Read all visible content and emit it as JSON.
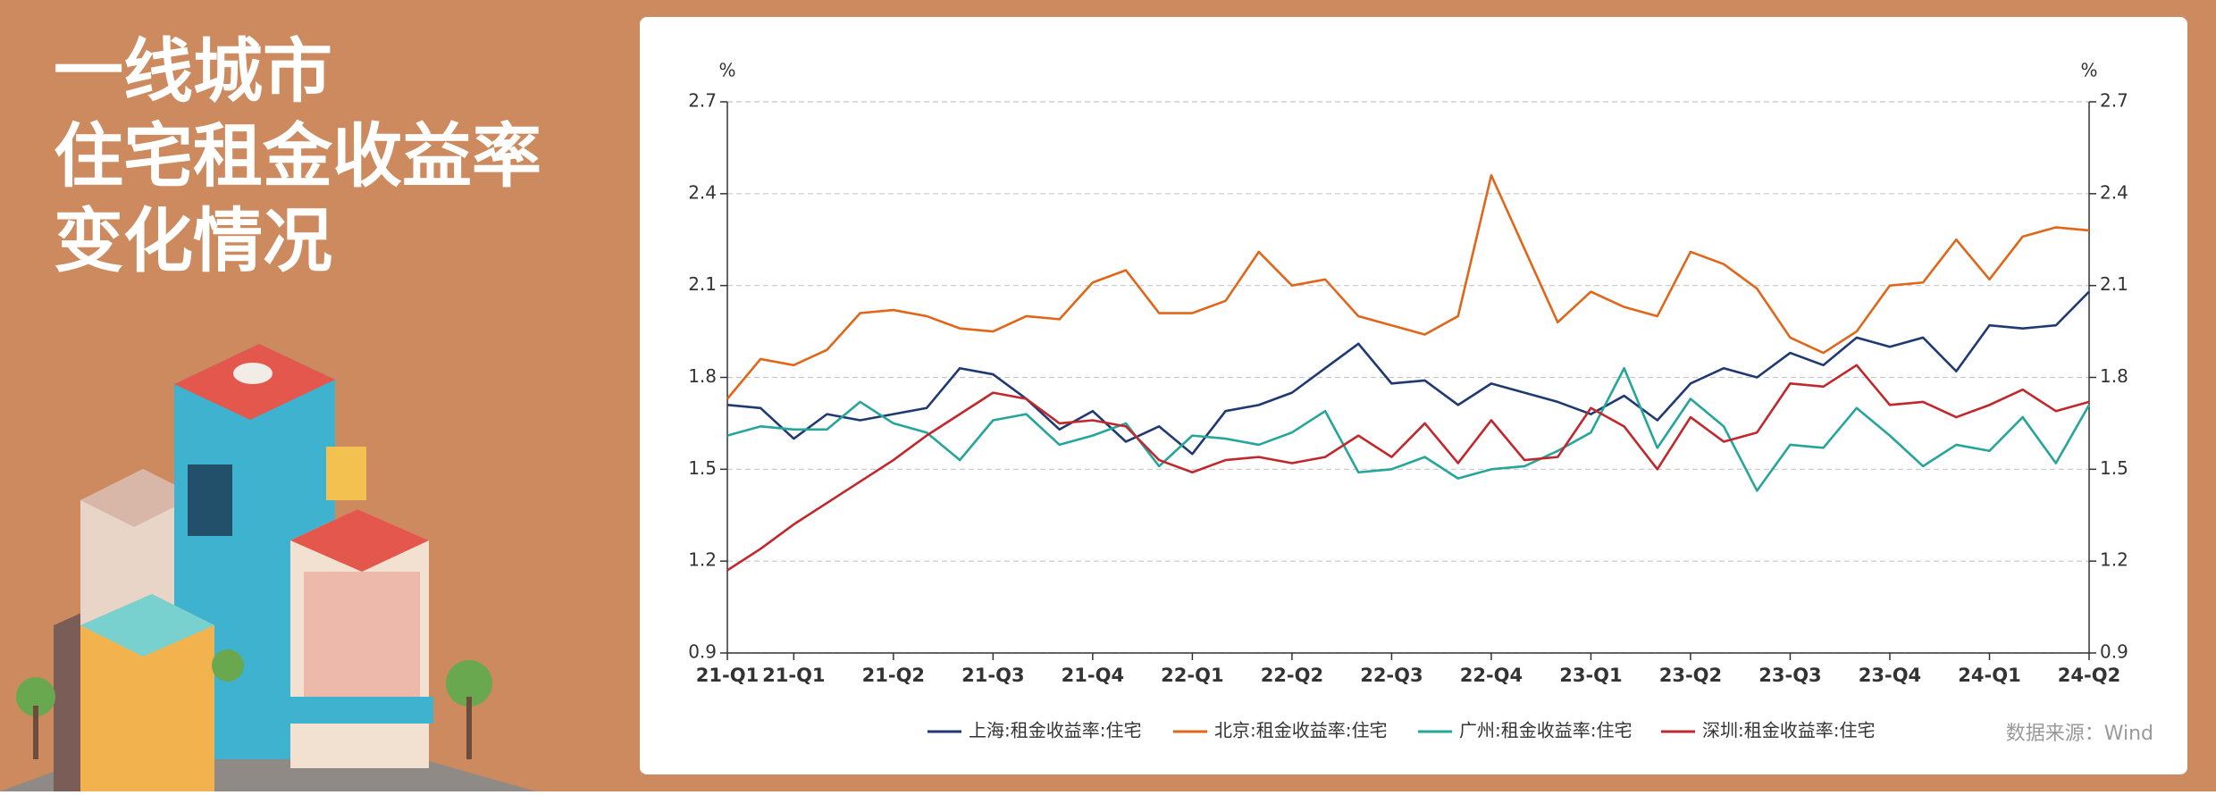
{
  "chart_data": {
    "type": "line",
    "title_lines": [
      "一线城市",
      "住宅租金收益率",
      "变化情况"
    ],
    "y_unit": "%",
    "y2_unit": "%",
    "source": "数据来源：Wind",
    "categories": [
      "21-Q1",
      null,
      "21-Q1",
      null,
      null,
      "21-Q2",
      null,
      null,
      "21-Q3",
      null,
      null,
      "21-Q4",
      null,
      null,
      "22-Q1",
      null,
      null,
      "22-Q2",
      null,
      null,
      "22-Q3",
      null,
      null,
      "22-Q4",
      null,
      null,
      "23-Q1",
      null,
      null,
      "23-Q2",
      null,
      null,
      "23-Q3",
      null,
      null,
      "23-Q4",
      null,
      null,
      "24-Q1",
      null,
      null,
      "24-Q2"
    ],
    "series": [
      {
        "name": "上海:租金收益率:住宅",
        "color": "#1f3a73",
        "values": [
          1.71,
          1.7,
          1.6,
          1.68,
          1.66,
          1.68,
          1.7,
          1.83,
          1.81,
          1.73,
          1.63,
          1.69,
          1.59,
          1.64,
          1.55,
          1.69,
          1.71,
          1.75,
          1.83,
          1.91,
          1.78,
          1.79,
          1.71,
          1.78,
          1.75,
          1.72,
          1.68,
          1.74,
          1.66,
          1.78,
          1.83,
          1.8,
          1.88,
          1.84,
          1.93,
          1.9,
          1.93,
          1.82,
          1.97,
          1.96,
          1.97,
          2.08
        ]
      },
      {
        "name": "北京:租金收益率:住宅",
        "color": "#e0671a",
        "values": [
          1.73,
          1.86,
          1.84,
          1.89,
          2.01,
          2.02,
          2.0,
          1.96,
          1.95,
          2.0,
          1.99,
          2.11,
          2.15,
          2.01,
          2.01,
          2.05,
          2.21,
          2.1,
          2.12,
          2.0,
          1.97,
          1.94,
          2.0,
          2.46,
          2.22,
          1.98,
          2.08,
          2.03,
          2.0,
          2.21,
          2.17,
          2.09,
          1.93,
          1.88,
          1.95,
          2.1,
          2.11,
          2.25,
          2.12,
          2.26,
          2.29,
          2.28
        ]
      },
      {
        "name": "广州:租金收益率:住宅",
        "color": "#26a59a",
        "values": [
          1.61,
          1.64,
          1.63,
          1.63,
          1.72,
          1.65,
          1.62,
          1.53,
          1.66,
          1.68,
          1.58,
          1.61,
          1.65,
          1.51,
          1.61,
          1.6,
          1.58,
          1.62,
          1.69,
          1.49,
          1.5,
          1.54,
          1.47,
          1.5,
          1.51,
          1.56,
          1.62,
          1.83,
          1.57,
          1.73,
          1.64,
          1.43,
          1.58,
          1.57,
          1.7,
          1.61,
          1.51,
          1.58,
          1.56,
          1.67,
          1.52,
          1.71
        ]
      },
      {
        "name": "深圳:租金收益率:住宅",
        "color": "#c0282d",
        "values": [
          1.17,
          1.24,
          1.32,
          1.39,
          1.46,
          1.53,
          1.61,
          1.68,
          1.75,
          1.73,
          1.65,
          1.66,
          1.64,
          1.53,
          1.49,
          1.53,
          1.54,
          1.52,
          1.54,
          1.61,
          1.54,
          1.65,
          1.52,
          1.66,
          1.53,
          1.54,
          1.7,
          1.64,
          1.5,
          1.67,
          1.59,
          1.62,
          1.78,
          1.77,
          1.84,
          1.71,
          1.72,
          1.67,
          1.71,
          1.76,
          1.69,
          1.72
        ]
      }
    ],
    "ylim": [
      0.9,
      2.7
    ],
    "yticks": [
      0.9,
      1.2,
      1.5,
      1.8,
      2.1,
      2.4,
      2.7
    ],
    "y2lim": [
      0.9,
      2.7
    ],
    "y2ticks": [
      0.9,
      1.2,
      1.5,
      1.8,
      2.1,
      2.4,
      2.7
    ],
    "grid": true,
    "legend": "bottom"
  }
}
